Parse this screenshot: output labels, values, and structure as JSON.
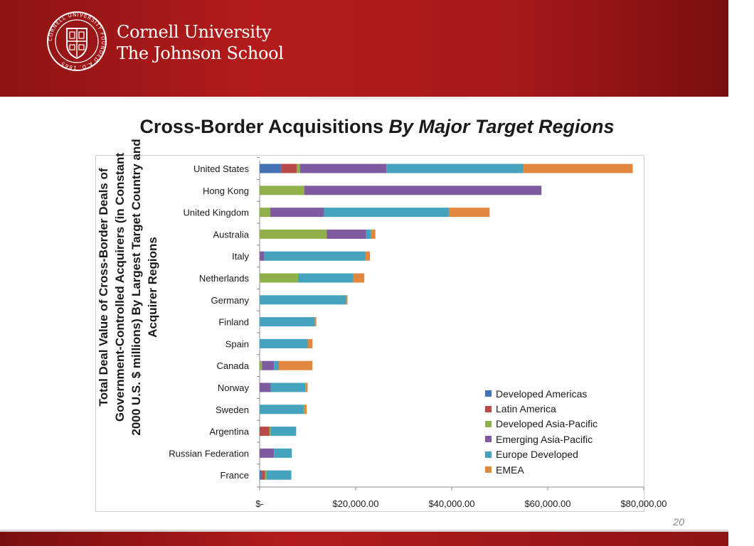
{
  "header": {
    "university_line1": "Cornell University",
    "university_line2": "The Johnson School",
    "seal_text": "CORNELL UNIVERSITY FOUNDED A.D. 1865"
  },
  "slide": {
    "title_regular": "Cross-Border Acquisitions ",
    "title_italic": "By Major Target Regions",
    "page_number": "20"
  },
  "colors": {
    "header_red": "#b31b1b",
    "Developed Americas": "#4573b3",
    "Latin America": "#b94a48",
    "Developed Asia-Pacific": "#8fb04a",
    "Emerging Asia-Pacific": "#7e5b9e",
    "Europe Developed": "#45a3bd",
    "EMEA": "#e1883d"
  },
  "chart_data": {
    "type": "bar",
    "orientation": "horizontal",
    "stacked": true,
    "ylabel": "Total Deal Value of Cross-Border Deals of Government-Controlled Acquirers (in Constant 2000 U.S. $ millions) By Largest Target Country and Acquirer Regions",
    "xlabel": "",
    "xlim": [
      0,
      80000
    ],
    "x_ticks": [
      0,
      20000,
      40000,
      60000,
      80000
    ],
    "x_tick_labels": [
      "$-",
      "$20,000.00",
      "$40,000.00",
      "$60,000.00",
      "$80,000.00"
    ],
    "grid": false,
    "legend_position": "bottom-right",
    "categories": [
      "United States",
      "Hong Kong",
      "United Kingdom",
      "Australia",
      "Italy",
      "Netherlands",
      "Germany",
      "Finland",
      "Spain",
      "Canada",
      "Norway",
      "Sweden",
      "Argentina",
      "Russian Federation",
      "France"
    ],
    "series": [
      {
        "name": "Developed Americas",
        "values": [
          4500,
          0,
          0,
          0,
          0,
          0,
          0,
          0,
          0,
          0,
          0,
          0,
          0,
          0,
          500
        ]
      },
      {
        "name": "Latin America",
        "values": [
          3200,
          0,
          0,
          0,
          0,
          0,
          0,
          0,
          0,
          0,
          0,
          0,
          2000,
          0,
          600
        ]
      },
      {
        "name": "Developed Asia-Pacific",
        "values": [
          700,
          9300,
          2200,
          14000,
          0,
          8000,
          0,
          0,
          0,
          500,
          0,
          0,
          300,
          0,
          300
        ]
      },
      {
        "name": "Emerging Asia-Pacific",
        "values": [
          18000,
          49400,
          11200,
          8200,
          1000,
          0,
          0,
          0,
          0,
          2500,
          2300,
          0,
          0,
          3000,
          0
        ]
      },
      {
        "name": "Europe Developed",
        "values": [
          28500,
          0,
          26000,
          1000,
          21000,
          11500,
          18000,
          11500,
          10000,
          1000,
          7200,
          9200,
          5300,
          3700,
          5200
        ]
      },
      {
        "name": "EMEA",
        "values": [
          22800,
          0,
          8500,
          900,
          1000,
          2300,
          300,
          300,
          1000,
          7000,
          500,
          600,
          0,
          0,
          0
        ]
      }
    ]
  }
}
